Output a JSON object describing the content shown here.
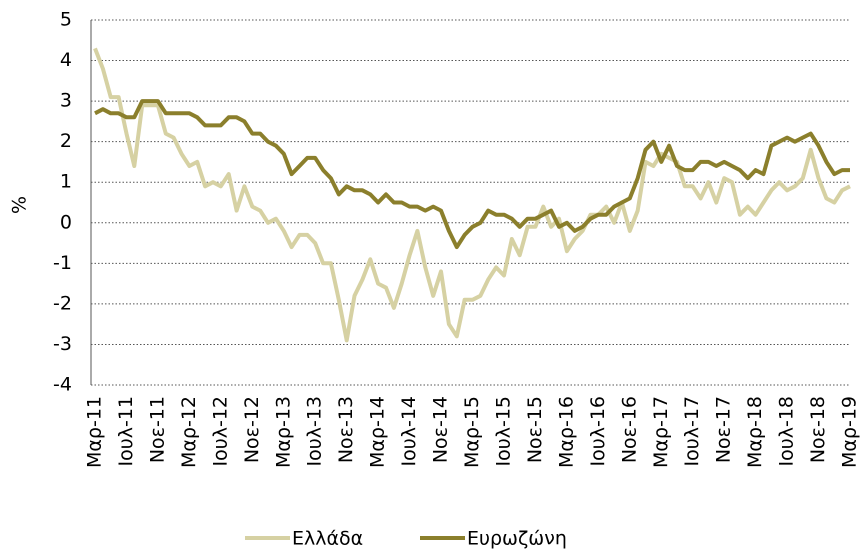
{
  "chart_data": {
    "type": "line",
    "ylabel": "%",
    "categories": [
      "Μαρ-11",
      null,
      null,
      null,
      "Ιουλ-11",
      null,
      null,
      null,
      "Νοε-11",
      null,
      null,
      null,
      "Μαρ-12",
      null,
      null,
      null,
      "Ιουλ-12",
      null,
      null,
      null,
      "Νοε-12",
      null,
      null,
      null,
      "Μαρ-13",
      null,
      null,
      null,
      "Ιουλ-13",
      null,
      null,
      null,
      "Νοε-13",
      null,
      null,
      null,
      "Μαρ-14",
      null,
      null,
      null,
      "Ιουλ-14",
      null,
      null,
      null,
      "Νοε-14",
      null,
      null,
      null,
      "Μαρ-15",
      null,
      null,
      null,
      "Ιουλ-15",
      null,
      null,
      null,
      "Νοε-15",
      null,
      null,
      null,
      "Μαρ-16",
      null,
      null,
      null,
      "Ιουλ-16",
      null,
      null,
      null,
      "Νοε-16",
      null,
      null,
      null,
      "Μαρ-17",
      null,
      null,
      null,
      "Ιουλ-17",
      null,
      null,
      null,
      "Νοε-17",
      null,
      null,
      null,
      "Μαρ-18",
      null,
      null,
      null,
      "Ιουλ-18",
      null,
      null,
      null,
      "Νοε-18",
      null,
      null,
      null,
      "Μαρ-19"
    ],
    "series": [
      {
        "name": "Ελλάδα",
        "color": "#d6d1a3",
        "values": [
          4.3,
          3.8,
          3.1,
          3.1,
          2.2,
          1.4,
          2.9,
          2.9,
          2.9,
          2.2,
          2.1,
          1.7,
          1.4,
          1.5,
          0.9,
          1.0,
          0.9,
          1.2,
          0.3,
          0.9,
          0.4,
          0.3,
          0.0,
          0.1,
          -0.2,
          -0.6,
          -0.3,
          -0.3,
          -0.5,
          -1.0,
          -1.0,
          -1.9,
          -2.9,
          -1.8,
          -1.4,
          -0.9,
          -1.5,
          -1.6,
          -2.1,
          -1.5,
          -0.8,
          -0.2,
          -1.1,
          -1.8,
          -1.2,
          -2.5,
          -2.8,
          -1.9,
          -1.9,
          -1.8,
          -1.4,
          -1.1,
          -1.3,
          -0.4,
          -0.8,
          -0.1,
          -0.1,
          0.4,
          -0.1,
          0.1,
          -0.7,
          -0.4,
          -0.2,
          0.2,
          0.2,
          0.4,
          0.0,
          0.5,
          -0.2,
          0.3,
          1.5,
          1.4,
          1.7,
          1.6,
          1.5,
          0.9,
          0.9,
          0.6,
          1.0,
          0.5,
          1.1,
          1.0,
          0.2,
          0.4,
          0.2,
          0.5,
          0.8,
          1.0,
          0.8,
          0.9,
          1.1,
          1.8,
          1.1,
          0.6,
          0.5,
          0.8,
          0.9
        ]
      },
      {
        "name": "Ευρωζώνη",
        "color": "#8b7f2c",
        "values": [
          2.7,
          2.8,
          2.7,
          2.7,
          2.6,
          2.6,
          3.0,
          3.0,
          3.0,
          2.7,
          2.7,
          2.7,
          2.7,
          2.6,
          2.4,
          2.4,
          2.4,
          2.6,
          2.6,
          2.5,
          2.2,
          2.2,
          2.0,
          1.9,
          1.7,
          1.2,
          1.4,
          1.6,
          1.6,
          1.3,
          1.1,
          0.7,
          0.9,
          0.8,
          0.8,
          0.7,
          0.5,
          0.7,
          0.5,
          0.5,
          0.4,
          0.4,
          0.3,
          0.4,
          0.3,
          -0.2,
          -0.6,
          -0.3,
          -0.1,
          0.0,
          0.3,
          0.2,
          0.2,
          0.1,
          -0.1,
          0.1,
          0.1,
          0.2,
          0.3,
          -0.1,
          0.0,
          -0.2,
          -0.1,
          0.1,
          0.2,
          0.2,
          0.4,
          0.5,
          0.6,
          1.1,
          1.8,
          2.0,
          1.5,
          1.9,
          1.4,
          1.3,
          1.3,
          1.5,
          1.5,
          1.4,
          1.5,
          1.4,
          1.3,
          1.1,
          1.3,
          1.2,
          1.9,
          2.0,
          2.1,
          2.0,
          2.1,
          2.2,
          1.9,
          1.5,
          1.2,
          1.3,
          1.3
        ]
      }
    ],
    "ylim": [
      -4,
      5
    ],
    "yticks": [
      -4,
      -3,
      -2,
      -1,
      0,
      1,
      2,
      3,
      4,
      5
    ],
    "grid": true
  }
}
